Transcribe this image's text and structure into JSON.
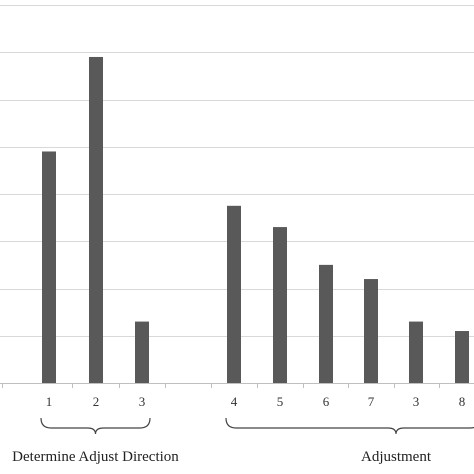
{
  "chart_data": {
    "type": "bar",
    "categories": [
      "1",
      "2",
      "3",
      "4",
      "5",
      "6",
      "7",
      "3",
      "8"
    ],
    "values": [
      4.9,
      6.9,
      1.3,
      3.75,
      3.3,
      2.5,
      2.2,
      1.3,
      1.1
    ],
    "ylim": [
      0,
      8
    ],
    "grid": true,
    "legend": "none",
    "bar_color": "#595959",
    "grid_color": "#d9d9d9",
    "groups": [
      {
        "label": "Determine Adjust Direction",
        "from": 0,
        "to": 2
      },
      {
        "label": "Adjustment",
        "from": 3,
        "to": 8
      }
    ]
  }
}
